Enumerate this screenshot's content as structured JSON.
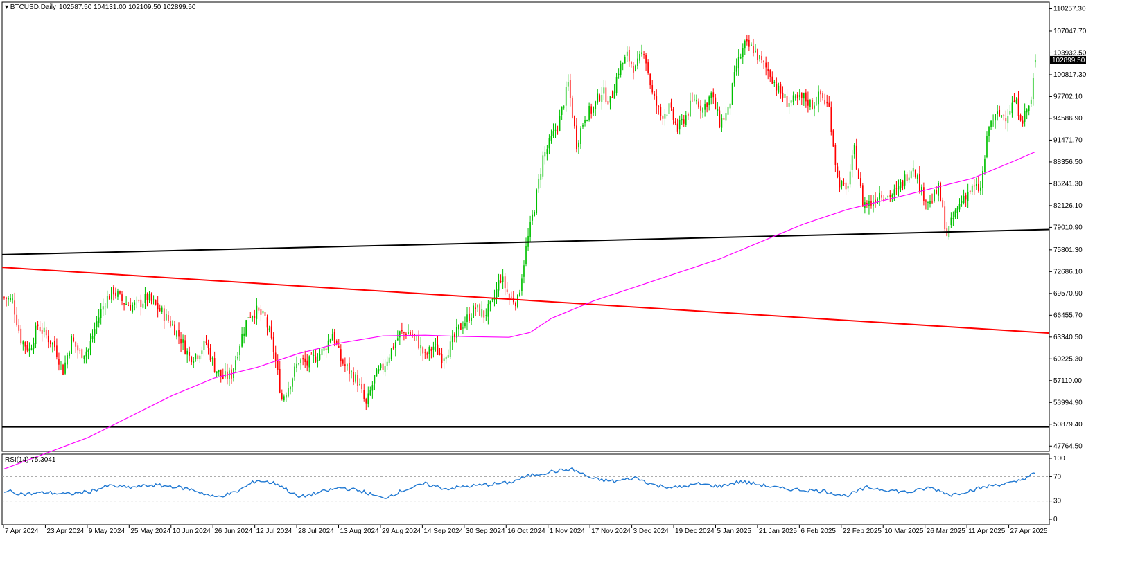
{
  "chart_data": [
    {
      "type": "candlestick",
      "title": "BTCUSD,Daily",
      "ohlc_header": "102587.50 104131.00 102109.50 102899.50",
      "last_price": 102899.5,
      "last_price_label": "102899.50",
      "ylim": [
        47000,
        111200
      ],
      "y_ticks": [
        47764.5,
        50879.4,
        53994.9,
        57110.0,
        60225.3,
        63340.5,
        66455.7,
        69570.9,
        72686.1,
        75801.3,
        79010.9,
        82126.1,
        85241.3,
        88356.5,
        91471.7,
        94586.9,
        97702.1,
        100817.3,
        103932.5,
        107047.7,
        110257.3
      ],
      "y_tick_labels": [
        "47764.50",
        "50879.40",
        "53994.90",
        "57110.00",
        "60225.30",
        "63340.50",
        "66455.70",
        "69570.90",
        "72686.10",
        "75801.30",
        "79010.90",
        "82126.10",
        "85241.30",
        "88356.50",
        "91471.70",
        "94586.90",
        "97702.10",
        "100817.30",
        "103932.50",
        "107047.70",
        "110257.30"
      ],
      "x_tick_labels": [
        "7 Apr 2024",
        "23 Apr 2024",
        "9 May 2024",
        "25 May 2024",
        "10 Jun 2024",
        "26 Jun 2024",
        "12 Jul 2024",
        "28 Jul 2024",
        "13 Aug 2024",
        "29 Aug 2024",
        "14 Sep 2024",
        "30 Sep 2024",
        "16 Oct 2024",
        "1 Nov 2024",
        "17 Nov 2024",
        "3 Dec 2024",
        "19 Dec 2024",
        "5 Jan 2025",
        "21 Jan 2025",
        "6 Feb 2025",
        "22 Feb 2025",
        "10 Mar 2025",
        "26 Mar 2025",
        "11 Apr 2025",
        "27 Apr 2025"
      ],
      "series": [
        {
          "kind": "close_path",
          "points": [
            [
              0,
              69000
            ],
            [
              4,
              68500
            ],
            [
              8,
              63000
            ],
            [
              12,
              61500
            ],
            [
              16,
              65000
            ],
            [
              20,
              63500
            ],
            [
              24,
              62000
            ],
            [
              28,
              58500
            ],
            [
              32,
              63000
            ],
            [
              36,
              61000
            ],
            [
              40,
              61500
            ],
            [
              44,
              65500
            ],
            [
              48,
              68500
            ],
            [
              52,
              70000
            ],
            [
              56,
              68500
            ],
            [
              60,
              67800
            ],
            [
              64,
              68000
            ],
            [
              68,
              69000
            ],
            [
              72,
              67800
            ],
            [
              76,
              66500
            ],
            [
              80,
              65000
            ],
            [
              84,
              63000
            ],
            [
              88,
              60500
            ],
            [
              92,
              61000
            ],
            [
              96,
              62500
            ],
            [
              100,
              59000
            ],
            [
              104,
              57500
            ],
            [
              108,
              58000
            ],
            [
              112,
              62500
            ],
            [
              116,
              66500
            ],
            [
              120,
              67000
            ],
            [
              124,
              66000
            ],
            [
              128,
              61500
            ],
            [
              132,
              54500
            ],
            [
              136,
              57000
            ],
            [
              140,
              60000
            ],
            [
              144,
              59500
            ],
            [
              148,
              60500
            ],
            [
              152,
              61500
            ],
            [
              156,
              64000
            ],
            [
              160,
              60000
            ],
            [
              164,
              58500
            ],
            [
              168,
              57000
            ],
            [
              172,
              53500
            ],
            [
              176,
              57500
            ],
            [
              180,
              59000
            ],
            [
              184,
              61500
            ],
            [
              188,
              63800
            ],
            [
              192,
              64000
            ],
            [
              196,
              63000
            ],
            [
              200,
              60500
            ],
            [
              204,
              62000
            ],
            [
              208,
              60500
            ],
            [
              212,
              62000
            ],
            [
              216,
              64500
            ],
            [
              220,
              66000
            ],
            [
              224,
              67500
            ],
            [
              228,
              66500
            ],
            [
              232,
              68000
            ],
            [
              236,
              72000
            ],
            [
              240,
              69000
            ],
            [
              244,
              68500
            ],
            [
              248,
              76000
            ],
            [
              252,
              82000
            ],
            [
              256,
              89000
            ],
            [
              260,
              91500
            ],
            [
              264,
              94500
            ],
            [
              268,
              99500
            ],
            [
              272,
              91000
            ],
            [
              276,
              95000
            ],
            [
              280,
              96000
            ],
            [
              284,
              98500
            ],
            [
              288,
              97000
            ],
            [
              292,
              101500
            ],
            [
              296,
              103500
            ],
            [
              300,
              101500
            ],
            [
              304,
              104500
            ],
            [
              308,
              98000
            ],
            [
              312,
              95000
            ],
            [
              316,
              96000
            ],
            [
              320,
              93000
            ],
            [
              324,
              95000
            ],
            [
              328,
              97500
            ],
            [
              332,
              96000
            ],
            [
              336,
              98000
            ],
            [
              340,
              94000
            ],
            [
              344,
              95500
            ],
            [
              348,
              102000
            ],
            [
              352,
              105000
            ],
            [
              356,
              104500
            ],
            [
              360,
              102500
            ],
            [
              364,
              101000
            ],
            [
              368,
              98500
            ],
            [
              372,
              97000
            ],
            [
              376,
              97000
            ],
            [
              380,
              97500
            ],
            [
              384,
              96500
            ],
            [
              388,
              98000
            ],
            [
              392,
              96000
            ],
            [
              396,
              86000
            ],
            [
              400,
              84000
            ],
            [
              404,
              90000
            ],
            [
              408,
              82500
            ],
            [
              412,
              82500
            ],
            [
              416,
              84000
            ],
            [
              420,
              83500
            ],
            [
              424,
              84000
            ],
            [
              428,
              86000
            ],
            [
              432,
              88000
            ],
            [
              436,
              84000
            ],
            [
              440,
              82500
            ],
            [
              444,
              84500
            ],
            [
              448,
              78000
            ],
            [
              452,
              81000
            ],
            [
              456,
              83500
            ],
            [
              460,
              84500
            ],
            [
              464,
              84500
            ],
            [
              468,
              93500
            ],
            [
              472,
              95000
            ],
            [
              476,
              95000
            ],
            [
              480,
              97000
            ],
            [
              484,
              94500
            ],
            [
              488,
              97000
            ],
            [
              490,
              102899.5
            ]
          ]
        },
        {
          "kind": "trendline",
          "name": "black line",
          "color": "#000000",
          "points": [
            [
              "7 Apr 2024",
              75100
            ],
            [
              "16 May 2025",
              78700
            ]
          ]
        },
        {
          "kind": "trendline",
          "name": "red line",
          "color": "#ff0000",
          "points": [
            [
              "7 Apr 2024",
              73300
            ],
            [
              "16 May 2025",
              63900
            ]
          ]
        },
        {
          "kind": "hline",
          "name": "support",
          "color": "#000000",
          "value": 50500
        },
        {
          "kind": "moving_average",
          "color": "#ff00ff",
          "points": [
            [
              0,
              44500
            ],
            [
              40,
              49000
            ],
            [
              60,
              52000
            ],
            [
              80,
              55000
            ],
            [
              100,
              57500
            ],
            [
              120,
              59000
            ],
            [
              140,
              61000
            ],
            [
              160,
              62500
            ],
            [
              180,
              63500
            ],
            [
              200,
              63600
            ],
            [
              220,
              63400
            ],
            [
              240,
              63300
            ],
            [
              250,
              64000
            ],
            [
              260,
              66000
            ],
            [
              280,
              68500
            ],
            [
              300,
              70500
            ],
            [
              320,
              72500
            ],
            [
              340,
              74500
            ],
            [
              360,
              77000
            ],
            [
              380,
              79500
            ],
            [
              400,
              81500
            ],
            [
              420,
              83000
            ],
            [
              440,
              84500
            ],
            [
              460,
              86000
            ],
            [
              480,
              88500
            ],
            [
              490,
              89800
            ]
          ]
        }
      ],
      "candle_colors": {
        "up": "#00c000",
        "down": "#ff0000"
      },
      "grid": false,
      "rsi": {
        "label": "RSI(14) 75.3041",
        "value": 75.3041,
        "ylim": [
          0,
          100
        ],
        "y_ticks": [
          0,
          30,
          70,
          100
        ],
        "y_tick_labels": [
          "0",
          "30",
          "70",
          "100"
        ],
        "levels": [
          30,
          70
        ],
        "color": "#1f78d2",
        "values": [
          [
            0,
            47
          ],
          [
            10,
            41
          ],
          [
            20,
            44
          ],
          [
            30,
            41
          ],
          [
            40,
            45
          ],
          [
            50,
            55
          ],
          [
            60,
            52
          ],
          [
            70,
            56
          ],
          [
            80,
            54
          ],
          [
            90,
            48
          ],
          [
            100,
            36
          ],
          [
            110,
            44
          ],
          [
            120,
            64
          ],
          [
            130,
            58
          ],
          [
            140,
            36
          ],
          [
            150,
            44
          ],
          [
            160,
            52
          ],
          [
            170,
            46
          ],
          [
            180,
            34
          ],
          [
            190,
            48
          ],
          [
            200,
            58
          ],
          [
            210,
            50
          ],
          [
            220,
            54
          ],
          [
            230,
            57
          ],
          [
            240,
            60
          ],
          [
            250,
            72
          ],
          [
            260,
            78
          ],
          [
            270,
            82
          ],
          [
            280,
            66
          ],
          [
            290,
            62
          ],
          [
            300,
            68
          ],
          [
            310,
            55
          ],
          [
            320,
            52
          ],
          [
            330,
            58
          ],
          [
            340,
            54
          ],
          [
            350,
            62
          ],
          [
            360,
            56
          ],
          [
            370,
            50
          ],
          [
            380,
            48
          ],
          [
            390,
            46
          ],
          [
            400,
            38
          ],
          [
            410,
            52
          ],
          [
            420,
            48
          ],
          [
            430,
            44
          ],
          [
            440,
            52
          ],
          [
            450,
            40
          ],
          [
            460,
            48
          ],
          [
            470,
            56
          ],
          [
            480,
            60
          ],
          [
            490,
            75.3
          ]
        ]
      }
    }
  ]
}
